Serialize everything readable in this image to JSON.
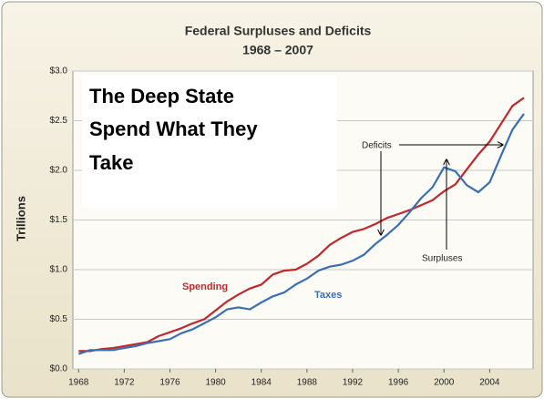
{
  "chart_data": {
    "type": "line",
    "title": "Federal Surpluses and Deficits",
    "subtitle": "1968 – 2007",
    "ylabel": "Trillions",
    "overlay_text": [
      "The Deep State",
      "Spend What They",
      "Take"
    ],
    "annotations": [
      "Deficits",
      "Surpluses"
    ],
    "x": [
      1968,
      1969,
      1970,
      1971,
      1972,
      1973,
      1974,
      1975,
      1976,
      1977,
      1978,
      1979,
      1980,
      1981,
      1982,
      1983,
      1984,
      1985,
      1986,
      1987,
      1988,
      1989,
      1990,
      1991,
      1992,
      1993,
      1994,
      1995,
      1996,
      1997,
      1998,
      1999,
      2000,
      2001,
      2002,
      2003,
      2004,
      2005,
      2006,
      2007
    ],
    "series": [
      {
        "name": "Spending",
        "color": "#c0282c",
        "values": [
          0.18,
          0.18,
          0.2,
          0.21,
          0.23,
          0.25,
          0.27,
          0.33,
          0.37,
          0.41,
          0.46,
          0.5,
          0.59,
          0.68,
          0.75,
          0.81,
          0.85,
          0.95,
          0.99,
          1.0,
          1.06,
          1.14,
          1.25,
          1.32,
          1.38,
          1.41,
          1.46,
          1.52,
          1.56,
          1.6,
          1.65,
          1.7,
          1.79,
          1.86,
          2.01,
          2.16,
          2.29,
          2.47,
          2.65,
          2.73
        ]
      },
      {
        "name": "Taxes",
        "color": "#3a6fb5",
        "values": [
          0.15,
          0.19,
          0.19,
          0.19,
          0.21,
          0.23,
          0.26,
          0.28,
          0.3,
          0.36,
          0.4,
          0.46,
          0.52,
          0.6,
          0.62,
          0.6,
          0.67,
          0.73,
          0.77,
          0.85,
          0.91,
          0.99,
          1.03,
          1.05,
          1.09,
          1.15,
          1.26,
          1.35,
          1.45,
          1.58,
          1.72,
          1.83,
          2.03,
          1.99,
          1.85,
          1.78,
          1.88,
          2.15,
          2.41,
          2.57
        ]
      }
    ],
    "xlim": [
      1967.5,
      2007.8
    ],
    "xticks": [
      1968,
      1972,
      1976,
      1980,
      1984,
      1988,
      1992,
      1996,
      2000,
      2004
    ],
    "ylim": [
      0,
      3
    ],
    "yticks": [
      {
        "value": 0,
        "label": "$0.0"
      },
      {
        "value": 0.5,
        "label": "$0.5"
      },
      {
        "value": 1,
        "label": "$1.0"
      },
      {
        "value": 1.5,
        "label": "$1.5"
      },
      {
        "value": 2,
        "label": "$2.0"
      },
      {
        "value": 2.5,
        "label": "$2.5"
      },
      {
        "value": 3,
        "label": "$3.0"
      }
    ],
    "grid": true
  }
}
